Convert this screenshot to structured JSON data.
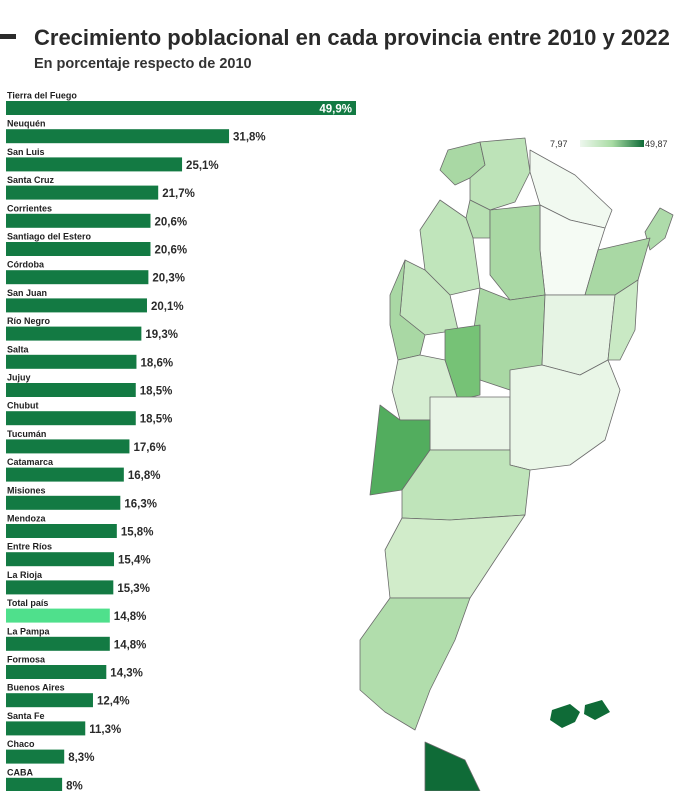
{
  "header": {
    "title": "Crecimiento poblacional en cada provincia entre 2010 y 2022",
    "subtitle": "En porcentaje respecto de 2010"
  },
  "legend": {
    "min": "7,97",
    "max": "49,87"
  },
  "colors": {
    "bar": "#137a43",
    "bar_highlight": "#4fe08c",
    "map_low": "#eef7ee",
    "map_high": "#0f6b37"
  },
  "chart_data": {
    "type": "bar",
    "orientation": "horizontal",
    "title": "Crecimiento poblacional en cada provincia entre 2010 y 2022",
    "subtitle": "En porcentaje respecto de 2010",
    "categories": [
      "Tierra del Fuego",
      "Neuquén",
      "San Luis",
      "Santa Cruz",
      "Corrientes",
      "Santiago del Estero",
      "Córdoba",
      "San Juan",
      "Río Negro",
      "Salta",
      "Jujuy",
      "Chubut",
      "Tucumán",
      "Catamarca",
      "Misiones",
      "Mendoza",
      "Entre Ríos",
      "La Rioja",
      "Total país",
      "La Pampa",
      "Formosa",
      "Buenos Aires",
      "Santa Fe",
      "Chaco",
      "CABA"
    ],
    "values": [
      49.9,
      31.8,
      25.1,
      21.7,
      20.6,
      20.6,
      20.3,
      20.1,
      19.3,
      18.6,
      18.5,
      18.5,
      17.6,
      16.8,
      16.3,
      15.8,
      15.4,
      15.3,
      14.8,
      14.8,
      14.3,
      12.4,
      11.3,
      8.3,
      8.0
    ],
    "value_labels": [
      "49,9%",
      "31,8%",
      "25,1%",
      "21,7%",
      "20,6%",
      "20,6%",
      "20,3%",
      "20,1%",
      "19,3%",
      "18,6%",
      "18,5%",
      "18,5%",
      "17,6%",
      "16,8%",
      "16,3%",
      "15,8%",
      "15,4%",
      "15,3%",
      "14,8%",
      "14,8%",
      "14,3%",
      "12,4%",
      "11,3%",
      "8,3%",
      "8%"
    ],
    "highlight": "Total país",
    "xlim": [
      0,
      49.9
    ],
    "grid": false,
    "legend": "none"
  }
}
